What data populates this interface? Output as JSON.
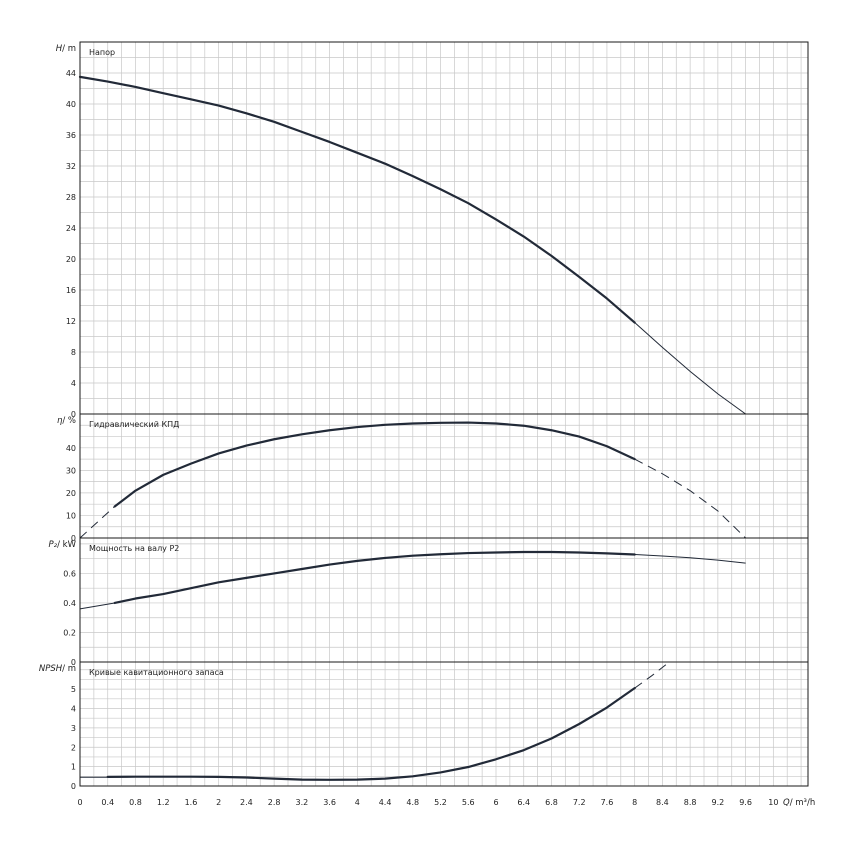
{
  "chart_data": {
    "type": "line",
    "x_axis": {
      "label": "Q",
      "unit": "m³/h",
      "range": [
        0,
        10.5
      ],
      "tick_labels": [
        "0",
        "0.4",
        "0.8",
        "1.2",
        "1.6",
        "2",
        "2.4",
        "2.8",
        "3.2",
        "3.6",
        "4",
        "4.4",
        "4.8",
        "5.2",
        "5.6",
        "6",
        "6.4",
        "6.8",
        "7.2",
        "7.6",
        "8",
        "8.4",
        "8.8",
        "9.2",
        "9.6",
        "10"
      ]
    },
    "panels": [
      {
        "id": "head",
        "title": "Напор",
        "ylabel": "H",
        "yunit": "m",
        "ylim": [
          0,
          48
        ],
        "yticks": [
          0,
          4,
          8,
          12,
          16,
          20,
          24,
          28,
          32,
          36,
          40,
          44
        ],
        "series": [
          {
            "style": "solid-bold",
            "x": [
              0,
              0.4,
              0.8,
              1.2,
              1.6,
              2.0,
              2.4,
              2.8,
              3.2,
              3.6,
              4.0,
              4.4,
              4.8,
              5.2,
              5.6,
              6.0,
              6.4,
              6.8,
              7.2,
              7.6,
              8.0
            ],
            "y": [
              43.5,
              42.9,
              42.2,
              41.4,
              40.6,
              39.8,
              38.8,
              37.7,
              36.4,
              35.1,
              33.7,
              32.3,
              30.7,
              29.0,
              27.2,
              25.1,
              22.9,
              20.4,
              17.7,
              14.9,
              11.8
            ]
          },
          {
            "style": "solid-thin",
            "x": [
              8.0,
              8.4,
              8.8,
              9.2,
              9.6
            ],
            "y": [
              11.8,
              8.6,
              5.5,
              2.6,
              0
            ]
          }
        ]
      },
      {
        "id": "efficiency",
        "title": "Гидравлический КПД",
        "ylabel": "η",
        "yunit": "%",
        "ylim": [
          0,
          55
        ],
        "yticks": [
          0,
          10,
          20,
          30,
          40
        ],
        "series": [
          {
            "style": "dashed",
            "x": [
              0,
              0.25,
              0.5
            ],
            "y": [
              0,
              7,
              14
            ]
          },
          {
            "style": "solid-bold",
            "x": [
              0.5,
              0.8,
              1.2,
              1.6,
              2.0,
              2.4,
              2.8,
              3.2,
              3.6,
              4.0,
              4.4,
              4.8,
              5.2,
              5.6,
              6.0,
              6.4,
              6.8,
              7.2,
              7.6,
              8.0
            ],
            "y": [
              14,
              21,
              28,
              33,
              37.5,
              41,
              43.8,
              46,
              47.8,
              49.2,
              50.2,
              50.8,
              51.1,
              51.2,
              50.8,
              49.8,
              47.8,
              45,
              40.7,
              35
            ]
          },
          {
            "style": "dashed",
            "x": [
              8.0,
              8.4,
              8.8,
              9.2,
              9.6
            ],
            "y": [
              35,
              28.5,
              21,
              12,
              0
            ]
          }
        ]
      },
      {
        "id": "power",
        "title": "Мощность на валу P2",
        "ylabel": "P₂",
        "yunit": "kW",
        "ylim": [
          0,
          0.84
        ],
        "yticks": [
          0,
          0.2,
          0.4,
          0.6
        ],
        "tick_labels": [
          "0",
          "0.2",
          "0.4",
          "0.6"
        ],
        "series": [
          {
            "style": "solid-thin",
            "x": [
              0,
              0.5
            ],
            "y": [
              0.36,
              0.4
            ]
          },
          {
            "style": "solid-bold",
            "x": [
              0.5,
              0.8,
              1.2,
              1.6,
              2.0,
              2.4,
              2.8,
              3.2,
              3.6,
              4.0,
              4.4,
              4.8,
              5.2,
              5.6,
              6.0,
              6.4,
              6.8,
              7.2,
              7.6,
              8.0
            ],
            "y": [
              0.4,
              0.43,
              0.46,
              0.5,
              0.54,
              0.57,
              0.6,
              0.63,
              0.66,
              0.685,
              0.705,
              0.72,
              0.73,
              0.738,
              0.742,
              0.745,
              0.745,
              0.742,
              0.736,
              0.728
            ]
          },
          {
            "style": "solid-thin",
            "x": [
              8.0,
              8.4,
              8.8,
              9.2,
              9.6
            ],
            "y": [
              0.728,
              0.718,
              0.706,
              0.69,
              0.67
            ]
          }
        ]
      },
      {
        "id": "npsh",
        "title": "Кривые кавитационного запаса",
        "ylabel": "NPSH",
        "yunit": "m",
        "ylim": [
          0,
          6.4
        ],
        "yticks": [
          0,
          1,
          2,
          3,
          4,
          5
        ],
        "series": [
          {
            "style": "solid-thin",
            "x": [
              0,
              0.4
            ],
            "y": [
              0.45,
              0.45
            ]
          },
          {
            "style": "solid-bold",
            "x": [
              0.4,
              0.8,
              1.2,
              1.6,
              2.0,
              2.4,
              2.8,
              3.2,
              3.6,
              4.0,
              4.4,
              4.8,
              5.2,
              5.6,
              6.0,
              6.4,
              6.8,
              7.2,
              7.6,
              8.0
            ],
            "y": [
              0.47,
              0.48,
              0.48,
              0.48,
              0.47,
              0.44,
              0.38,
              0.33,
              0.32,
              0.33,
              0.38,
              0.5,
              0.7,
              0.98,
              1.38,
              1.85,
              2.45,
              3.2,
              4.05,
              5.05
            ]
          },
          {
            "style": "dashed",
            "x": [
              8.0,
              8.25,
              8.5
            ],
            "y": [
              5.05,
              5.7,
              6.4
            ]
          }
        ]
      }
    ]
  }
}
